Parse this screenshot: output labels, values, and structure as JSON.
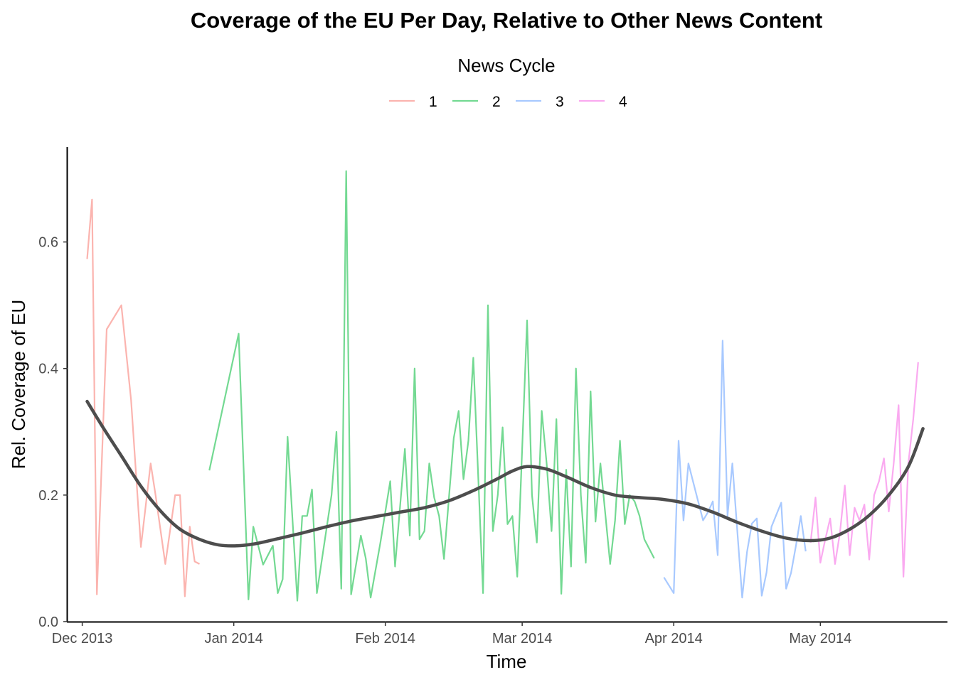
{
  "chart_data": {
    "type": "line",
    "title": "Coverage of the EU Per Day, Relative to Other News Content",
    "xlabel": "Time",
    "ylabel": "Rel. Coverage of EU",
    "x_axis_type": "date",
    "xlim": [
      "2013-11-28",
      "2014-05-27"
    ],
    "ylim": [
      0,
      0.75
    ],
    "x_ticks": [
      {
        "date": "2013-12-01",
        "label": "Dec 2013"
      },
      {
        "date": "2014-01-01",
        "label": "Jan 2014"
      },
      {
        "date": "2014-02-01",
        "label": "Feb 2014"
      },
      {
        "date": "2014-03-01",
        "label": "Mar 2014"
      },
      {
        "date": "2014-04-01",
        "label": "Apr 2014"
      },
      {
        "date": "2014-05-01",
        "label": "May 2014"
      }
    ],
    "y_ticks": [
      0.0,
      0.2,
      0.4,
      0.6
    ],
    "y_tick_labels": [
      "0.0",
      "0.2",
      "0.4",
      "0.6"
    ],
    "grid": false,
    "legend": {
      "title": "News Cycle",
      "position": "top",
      "entries": [
        "1",
        "2",
        "3",
        "4"
      ]
    },
    "series": [
      {
        "name": "1",
        "color": "#F8766D",
        "x": [
          "2013-12-02",
          "2013-12-03",
          "2013-12-04",
          "2013-12-06",
          "2013-12-09",
          "2013-12-11",
          "2013-12-13",
          "2013-12-15",
          "2013-12-16",
          "2013-12-18",
          "2013-12-20",
          "2013-12-21",
          "2013-12-22",
          "2013-12-23",
          "2013-12-24",
          "2013-12-25"
        ],
        "y": [
          0.573,
          0.667,
          0.043,
          0.462,
          0.5,
          0.35,
          0.118,
          0.25,
          0.2,
          0.091,
          0.2,
          0.2,
          0.04,
          0.15,
          0.095,
          0.091
        ]
      },
      {
        "name": "2",
        "color": "#00BA38",
        "x": [
          "2013-12-27",
          "2014-01-02",
          "2014-01-04",
          "2014-01-05",
          "2014-01-07",
          "2014-01-09",
          "2014-01-10",
          "2014-01-11",
          "2014-01-12",
          "2014-01-14",
          "2014-01-15",
          "2014-01-16",
          "2014-01-17",
          "2014-01-18",
          "2014-01-21",
          "2014-01-22",
          "2014-01-23",
          "2014-01-24",
          "2014-01-25",
          "2014-01-27",
          "2014-01-28",
          "2014-01-29",
          "2014-01-31",
          "2014-02-02",
          "2014-02-03",
          "2014-02-05",
          "2014-02-06",
          "2014-02-07",
          "2014-02-08",
          "2014-02-09",
          "2014-02-10",
          "2014-02-11",
          "2014-02-12",
          "2014-02-13",
          "2014-02-15",
          "2014-02-16",
          "2014-02-17",
          "2014-02-18",
          "2014-02-19",
          "2014-02-21",
          "2014-02-22",
          "2014-02-23",
          "2014-02-24",
          "2014-02-25",
          "2014-02-26",
          "2014-02-27",
          "2014-02-28",
          "2014-03-02",
          "2014-03-03",
          "2014-03-04",
          "2014-03-05",
          "2014-03-06",
          "2014-03-07",
          "2014-03-08",
          "2014-03-09",
          "2014-03-10",
          "2014-03-11",
          "2014-03-12",
          "2014-03-13",
          "2014-03-14",
          "2014-03-15",
          "2014-03-16",
          "2014-03-17",
          "2014-03-19",
          "2014-03-20",
          "2014-03-21",
          "2014-03-22",
          "2014-03-23",
          "2014-03-24",
          "2014-03-25",
          "2014-03-26",
          "2014-03-28"
        ],
        "y": [
          0.239,
          0.455,
          0.035,
          0.15,
          0.09,
          0.12,
          0.045,
          0.067,
          0.292,
          0.033,
          0.167,
          0.167,
          0.209,
          0.045,
          0.2,
          0.3,
          0.052,
          0.712,
          0.043,
          0.136,
          0.1,
          0.038,
          0.125,
          0.222,
          0.087,
          0.273,
          0.136,
          0.4,
          0.13,
          0.143,
          0.25,
          0.196,
          0.167,
          0.099,
          0.29,
          0.333,
          0.225,
          0.286,
          0.417,
          0.045,
          0.5,
          0.143,
          0.2,
          0.307,
          0.154,
          0.167,
          0.071,
          0.476,
          0.2,
          0.125,
          0.333,
          0.25,
          0.143,
          0.32,
          0.044,
          0.24,
          0.087,
          0.4,
          0.2,
          0.093,
          0.364,
          0.158,
          0.25,
          0.091,
          0.16,
          0.286,
          0.154,
          0.2,
          0.19,
          0.167,
          0.13,
          0.1
        ]
      },
      {
        "name": "3",
        "color": "#619CFF",
        "x": [
          "2014-03-30",
          "2014-04-01",
          "2014-04-02",
          "2014-04-03",
          "2014-04-04",
          "2014-04-06",
          "2014-04-07",
          "2014-04-08",
          "2014-04-09",
          "2014-04-10",
          "2014-04-11",
          "2014-04-12",
          "2014-04-13",
          "2014-04-15",
          "2014-04-16",
          "2014-04-17",
          "2014-04-18",
          "2014-04-19",
          "2014-04-20",
          "2014-04-21",
          "2014-04-23",
          "2014-04-24",
          "2014-04-25",
          "2014-04-26",
          "2014-04-27",
          "2014-04-28"
        ],
        "y": [
          0.07,
          0.045,
          0.286,
          0.16,
          0.25,
          0.19,
          0.16,
          0.173,
          0.19,
          0.105,
          0.444,
          0.167,
          0.25,
          0.038,
          0.11,
          0.155,
          0.163,
          0.041,
          0.078,
          0.15,
          0.188,
          0.052,
          0.077,
          0.12,
          0.167,
          0.111
        ]
      },
      {
        "name": "4",
        "color": "#F564E3",
        "x": [
          "2014-04-29",
          "2014-04-30",
          "2014-05-01",
          "2014-05-02",
          "2014-05-03",
          "2014-05-04",
          "2014-05-05",
          "2014-05-06",
          "2014-05-07",
          "2014-05-08",
          "2014-05-09",
          "2014-05-10",
          "2014-05-11",
          "2014-05-12",
          "2014-05-13",
          "2014-05-14",
          "2014-05-15",
          "2014-05-16",
          "2014-05-17",
          "2014-05-18",
          "2014-05-19",
          "2014-05-20",
          "2014-05-21"
        ],
        "y": [
          0.125,
          0.196,
          0.093,
          0.13,
          0.163,
          0.091,
          0.14,
          0.215,
          0.105,
          0.18,
          0.16,
          0.185,
          0.098,
          0.2,
          0.222,
          0.258,
          0.174,
          0.25,
          0.342,
          0.071,
          0.25,
          0.32,
          0.41
        ]
      }
    ],
    "smooth": {
      "color": "#4d4d4d",
      "x": [
        "2013-12-02",
        "2013-12-05",
        "2013-12-09",
        "2013-12-13",
        "2013-12-17",
        "2013-12-21",
        "2013-12-25",
        "2013-12-29",
        "2014-01-02",
        "2014-01-06",
        "2014-01-10",
        "2014-01-15",
        "2014-01-20",
        "2014-01-25",
        "2014-01-30",
        "2014-02-04",
        "2014-02-09",
        "2014-02-14",
        "2014-02-19",
        "2014-02-24",
        "2014-02-27",
        "2014-03-02",
        "2014-03-06",
        "2014-03-10",
        "2014-03-15",
        "2014-03-20",
        "2014-03-25",
        "2014-03-30",
        "2014-04-04",
        "2014-04-09",
        "2014-04-14",
        "2014-04-19",
        "2014-04-24",
        "2014-04-29",
        "2014-05-03",
        "2014-05-07",
        "2014-05-11",
        "2014-05-15",
        "2014-05-19",
        "2014-05-22"
      ],
      "y": [
        0.348,
        0.31,
        0.262,
        0.214,
        0.175,
        0.146,
        0.13,
        0.121,
        0.12,
        0.124,
        0.131,
        0.14,
        0.15,
        0.159,
        0.166,
        0.173,
        0.18,
        0.191,
        0.207,
        0.226,
        0.238,
        0.245,
        0.241,
        0.229,
        0.212,
        0.2,
        0.196,
        0.193,
        0.186,
        0.173,
        0.157,
        0.143,
        0.132,
        0.128,
        0.132,
        0.146,
        0.168,
        0.2,
        0.245,
        0.305
      ]
    }
  }
}
